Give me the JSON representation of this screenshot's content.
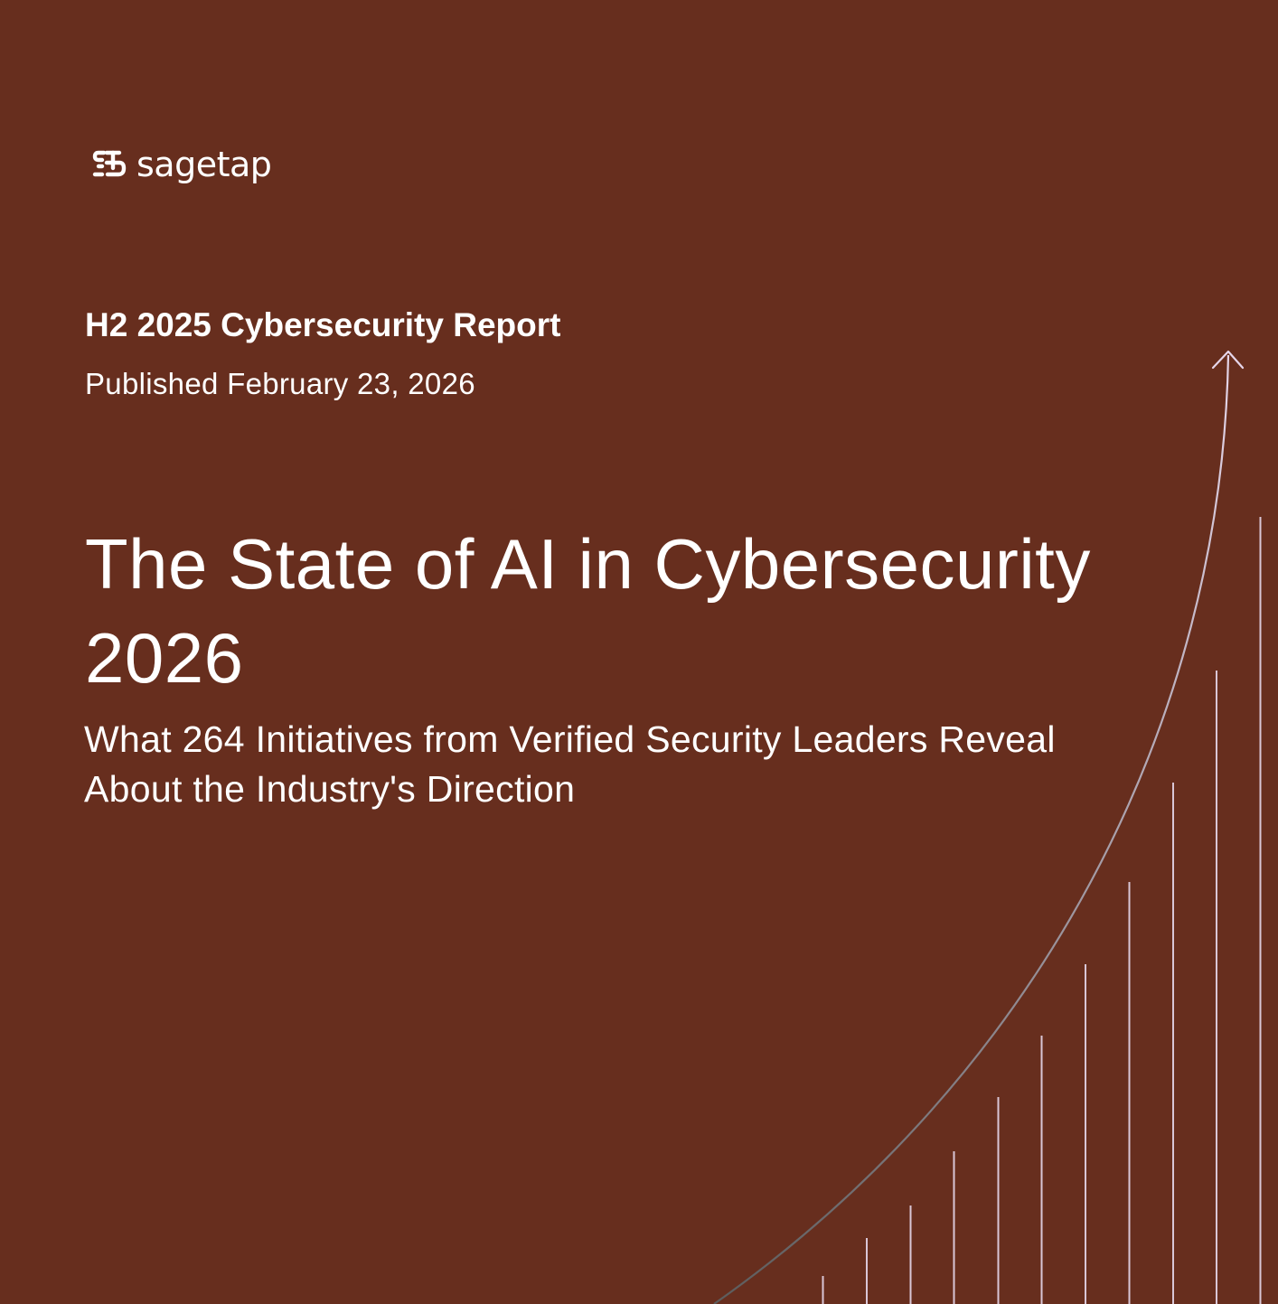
{
  "colors": {
    "background": "#672e1e",
    "text": "#ffffff",
    "bar_line": "#d9c6d6",
    "curve_start": "#5c5c5c",
    "curve_end": "#e6d6ea"
  },
  "brand": {
    "logo_icon": "sagetap-logo-icon",
    "name": "sagetap"
  },
  "report": {
    "label": "H2 2025 Cybersecurity Report",
    "published": "Published February 23, 2026"
  },
  "title": "The State of AI in Cybersecurity 2026",
  "subtitle": "What 264 Initiatives from Verified Security Leaders Reveal About the Industry's Direction",
  "graphic": {
    "type": "rising-bars-with-arrow-curve",
    "bar_count": 11,
    "icons": [
      "arrow-up-icon"
    ]
  }
}
